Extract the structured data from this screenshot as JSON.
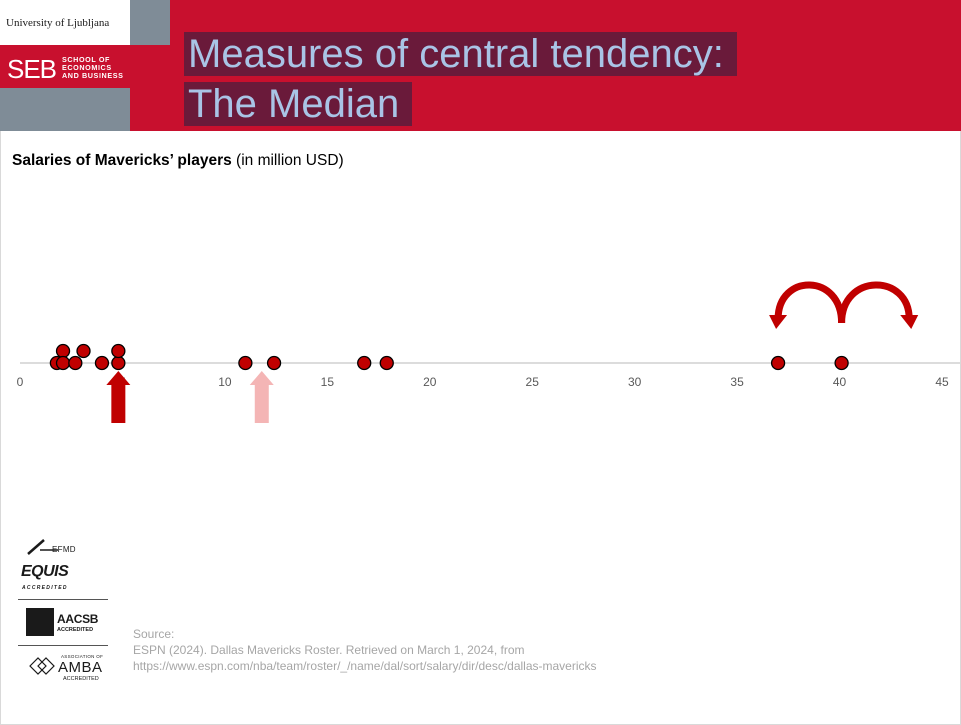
{
  "header": {
    "university": "University of Ljubljana",
    "school_abbr": "SEB",
    "school_line1": "SCHOOL OF",
    "school_line2": "ECONOMICS",
    "school_line3": "AND BUSINESS",
    "title_line1": "Measures of central tendency:",
    "title_line2": "The Median"
  },
  "subtitle": {
    "bold": "Salaries of Mavericks’ players",
    "rest": " (in million USD)"
  },
  "colors": {
    "brand_red": "#c8102e",
    "title_text": "#a9c4e6",
    "title_highlight": "#6a1a3a",
    "marker": "#c00000",
    "pale_arrow": "#f4b5b5"
  },
  "chart_data": {
    "type": "scatter",
    "title": "Salaries of Mavericks’ players (in million USD)",
    "xlim": [
      0,
      45
    ],
    "x_ticks": [
      0,
      5,
      10,
      15,
      20,
      25,
      30,
      35,
      40,
      45
    ],
    "x_tick_labels": [
      "0",
      "5",
      "10",
      "15",
      "20",
      "25",
      "30",
      "35",
      "40",
      "45"
    ],
    "points": [
      {
        "x": 1.8,
        "stack": 0
      },
      {
        "x": 2.1,
        "stack": 1
      },
      {
        "x": 2.1,
        "stack": 0
      },
      {
        "x": 2.7,
        "stack": 0
      },
      {
        "x": 3.1,
        "stack": 1
      },
      {
        "x": 4.0,
        "stack": 0
      },
      {
        "x": 4.8,
        "stack": 0
      },
      {
        "x": 4.8,
        "stack": 1
      },
      {
        "x": 11.0,
        "stack": 0
      },
      {
        "x": 12.4,
        "stack": 0
      },
      {
        "x": 16.8,
        "stack": 0
      },
      {
        "x": 17.9,
        "stack": 0
      },
      {
        "x": 37.0,
        "stack": 0
      },
      {
        "x": 40.1,
        "stack": 0
      }
    ],
    "median_arrow_x": 4.8,
    "pale_arrow_x": 11.8,
    "curved_arrows": [
      {
        "from": 40.1,
        "to": 37.0
      },
      {
        "from": 40.1,
        "to": 43.4
      }
    ]
  },
  "logos": {
    "efmd": "EFMD",
    "equis": "EQUIS",
    "equis_accredited": "ACCREDITED",
    "aacsb": "AACSB",
    "aacsb_accredited": "ACCREDITED",
    "amba_association": "ASSOCIATION OF",
    "amba": "AMBA",
    "amba_accredited": "ACCREDITED"
  },
  "source": {
    "label": "Source:",
    "line1": "ESPN (2024). Dallas Mavericks Roster. Retrieved on March 1, 2024, from",
    "line2": "https://www.espn.com/nba/team/roster/_/name/dal/sort/salary/dir/desc/dallas-mavericks"
  }
}
